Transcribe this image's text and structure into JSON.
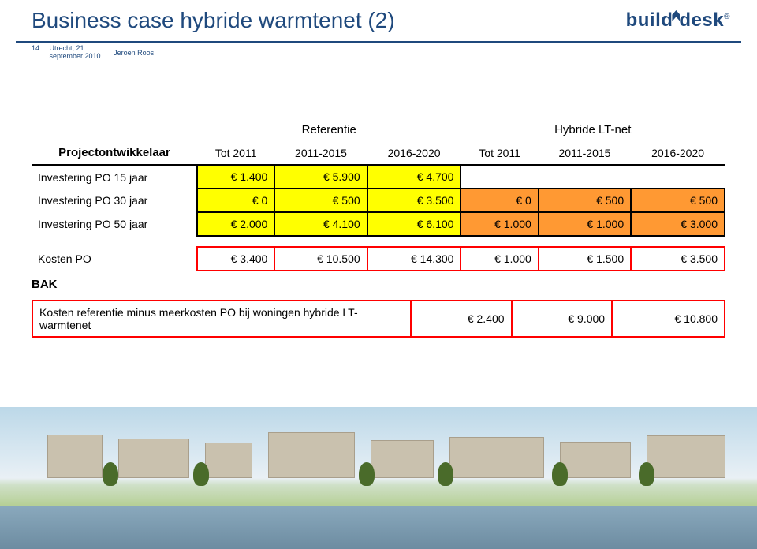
{
  "header": {
    "title": "Business case hybride warmtenet (2)",
    "page_number": "14",
    "date_line1": "Utrecht, 21",
    "date_line2": "september 2010",
    "author": "Jeroen Roos"
  },
  "logo": {
    "part1": "build",
    "part2": "desk",
    "reg": "®"
  },
  "table": {
    "group_headers": {
      "left": "Referentie",
      "right": "Hybride LT-net"
    },
    "col_headers": [
      "Tot 2011",
      "2011-2015",
      "2016-2020",
      "Tot 2011",
      "2011-2015",
      "2016-2020"
    ],
    "row_label_head": "Projectontwikkelaar",
    "rows": [
      {
        "label": "Investering PO 15 jaar",
        "cells": [
          "€ 1.400",
          "€ 5.900",
          "€ 4.700",
          "",
          "",
          ""
        ],
        "yellow": [
          0,
          1,
          2
        ],
        "orange": [],
        "empty": [
          3,
          4,
          5
        ]
      },
      {
        "label": "Investering PO 30 jaar",
        "cells": [
          "€ 0",
          "€ 500",
          "€ 3.500",
          "€ 0",
          "€ 500",
          "€ 500"
        ],
        "yellow": [
          0,
          1,
          2
        ],
        "orange": [
          3,
          4,
          5
        ],
        "empty": []
      },
      {
        "label": "Investering PO 50 jaar",
        "cells": [
          "€ 2.000",
          "€ 4.100",
          "€ 6.100",
          "€ 1.000",
          "€ 1.000",
          "€ 3.000"
        ],
        "yellow": [
          0,
          1,
          2
        ],
        "orange": [
          3,
          4,
          5
        ],
        "empty": []
      }
    ],
    "kosten": {
      "label": "Kosten PO",
      "cells": [
        "€ 3.400",
        "€ 10.500",
        "€ 14.300",
        "€ 1.000",
        "€ 1.500",
        "€ 3.500"
      ]
    }
  },
  "bak": {
    "label": "BAK",
    "text": "Kosten referentie minus meerkosten PO bij woningen hybride LT-warmtenet",
    "cells": [
      "€ 2.400",
      "€ 9.000",
      "€ 10.800"
    ]
  },
  "colors": {
    "brand": "#1f497d",
    "yellow": "#ffff00",
    "orange": "#ff9933",
    "red": "#ff0000"
  }
}
